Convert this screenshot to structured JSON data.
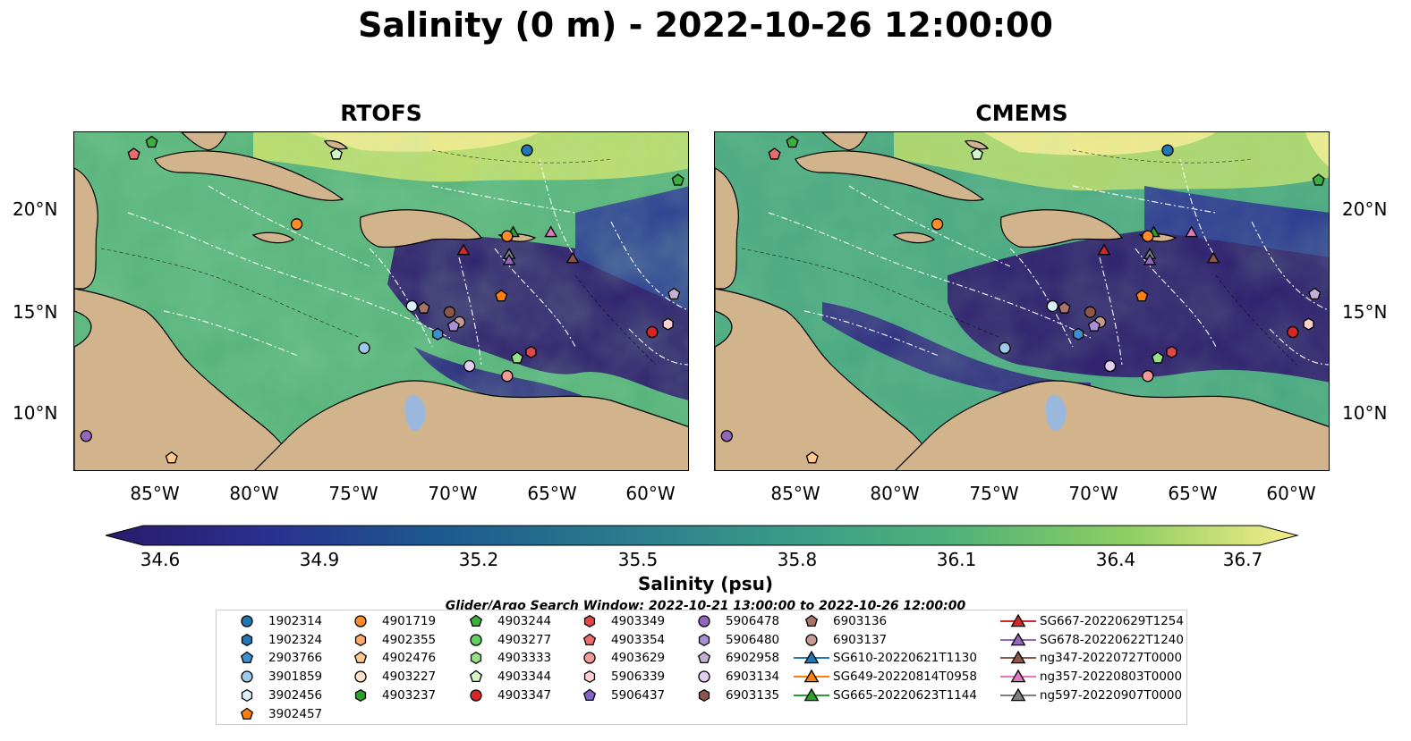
{
  "title": "Salinity (0 m) - 2022-10-26 12:00:00",
  "panels": [
    {
      "title": "RTOFS"
    },
    {
      "title": "CMEMS"
    }
  ],
  "lat_labels": [
    "20°N",
    "15°N",
    "10°N"
  ],
  "lon_labels": [
    "85°W",
    "80°W",
    "75°W",
    "70°W",
    "65°W",
    "60°W"
  ],
  "colorbar": {
    "label": "Salinity (psu)",
    "ticks": [
      "34.6",
      "34.9",
      "35.2",
      "35.5",
      "35.8",
      "36.1",
      "36.4",
      "36.7"
    ],
    "cmap": "haline",
    "extend": "both"
  },
  "search_window": "Glider/Argo Search Window: 2022-10-21 13:00:00 to 2022-10-26 12:00:00",
  "legend": [
    {
      "label": "1902314",
      "shape": "circle",
      "color": "#1f77b4"
    },
    {
      "label": "1902324",
      "shape": "hexagon",
      "color": "#1f77b4"
    },
    {
      "label": "2903766",
      "shape": "pentagon",
      "color": "#3d8fd0"
    },
    {
      "label": "3901859",
      "shape": "circle",
      "color": "#9ecae9"
    },
    {
      "label": "3902456",
      "shape": "hexagon",
      "color": "#dbeefb"
    },
    {
      "label": "3902457",
      "shape": "pentagon",
      "color": "#ff7f0e"
    },
    {
      "label": "4901719",
      "shape": "circle",
      "color": "#ff8c2a"
    },
    {
      "label": "4902355",
      "shape": "hexagon",
      "color": "#ffab6b"
    },
    {
      "label": "4902476",
      "shape": "pentagon",
      "color": "#ffc98f"
    },
    {
      "label": "4903227",
      "shape": "circle",
      "color": "#fde0c5"
    },
    {
      "label": "4903237",
      "shape": "hexagon",
      "color": "#2ca02c"
    },
    {
      "label": "4903244",
      "shape": "pentagon",
      "color": "#3cb03c"
    },
    {
      "label": "4903277",
      "shape": "circle",
      "color": "#5ed15e"
    },
    {
      "label": "4903333",
      "shape": "hexagon",
      "color": "#98df8a"
    },
    {
      "label": "4903344",
      "shape": "pentagon",
      "color": "#d4f5c8"
    },
    {
      "label": "4903347",
      "shape": "circle",
      "color": "#d62728"
    },
    {
      "label": "4903349",
      "shape": "hexagon",
      "color": "#e0474a"
    },
    {
      "label": "4903354",
      "shape": "pentagon",
      "color": "#ec6c6e"
    },
    {
      "label": "4903629",
      "shape": "circle",
      "color": "#f29a98"
    },
    {
      "label": "5906339",
      "shape": "hexagon",
      "color": "#fbd0cf"
    },
    {
      "label": "5906437",
      "shape": "pentagon",
      "color": "#8463c4"
    },
    {
      "label": "5906478",
      "shape": "circle",
      "color": "#9467bd"
    },
    {
      "label": "5906480",
      "shape": "hexagon",
      "color": "#ad8fd6"
    },
    {
      "label": "6902958",
      "shape": "pentagon",
      "color": "#c5b0d5"
    },
    {
      "label": "6903134",
      "shape": "circle",
      "color": "#e3cdf1"
    },
    {
      "label": "6903135",
      "shape": "hexagon",
      "color": "#8c564b"
    },
    {
      "label": "6903136",
      "shape": "pentagon",
      "color": "#a8746a"
    },
    {
      "label": "6903137",
      "shape": "circle",
      "color": "#c49c94"
    },
    {
      "label": "SG610-20220621T1130",
      "shape": "triangle-line",
      "color": "#1f77b4"
    },
    {
      "label": "SG649-20220814T0958",
      "shape": "triangle-line",
      "color": "#ff7f0e"
    },
    {
      "label": "SG665-20220623T1144",
      "shape": "triangle-line",
      "color": "#2ca02c"
    },
    {
      "label": "SG667-20220629T1254",
      "shape": "triangle-line",
      "color": "#d62728"
    },
    {
      "label": "SG678-20220622T1240",
      "shape": "triangle-line",
      "color": "#9467bd"
    },
    {
      "label": "ng347-20220727T0000",
      "shape": "triangle-line",
      "color": "#8c564b"
    },
    {
      "label": "ng357-20220803T0000",
      "shape": "triangle-line",
      "color": "#e377c2"
    },
    {
      "label": "ng597-20220907T0000",
      "shape": "triangle-line",
      "color": "#7f7f7f"
    }
  ],
  "map_extent": {
    "lon": [
      -89,
      -58
    ],
    "lat": [
      7,
      24
    ]
  },
  "markers": [
    {
      "lon": -66.2,
      "lat": 23.1,
      "shape": "circle",
      "color": "#1f77b4"
    },
    {
      "lon": -85.1,
      "lat": 23.5,
      "shape": "pentagon",
      "color": "#3cb03c"
    },
    {
      "lon": -86.0,
      "lat": 22.9,
      "shape": "pentagon",
      "color": "#ec6c6e"
    },
    {
      "lon": -75.8,
      "lat": 22.9,
      "shape": "pentagon",
      "color": "#d4f5c8"
    },
    {
      "lon": -58.6,
      "lat": 21.6,
      "shape": "pentagon",
      "color": "#3cb03c"
    },
    {
      "lon": -77.8,
      "lat": 19.4,
      "shape": "circle",
      "color": "#ff8c2a"
    },
    {
      "lon": -66.9,
      "lat": 19.0,
      "shape": "triangle",
      "color": "#2ca02c"
    },
    {
      "lon": -65.0,
      "lat": 19.0,
      "shape": "triangle",
      "color": "#e377c2"
    },
    {
      "lon": -67.2,
      "lat": 18.8,
      "shape": "circle",
      "color": "#ff8c2a"
    },
    {
      "lon": -69.4,
      "lat": 18.1,
      "shape": "triangle",
      "color": "#d62728"
    },
    {
      "lon": -67.1,
      "lat": 17.9,
      "shape": "triangle",
      "color": "#7f7f7f"
    },
    {
      "lon": -67.1,
      "lat": 17.6,
      "shape": "triangle",
      "color": "#9467bd"
    },
    {
      "lon": -63.9,
      "lat": 17.7,
      "shape": "triangle",
      "color": "#8c564b"
    },
    {
      "lon": -67.5,
      "lat": 15.8,
      "shape": "pentagon",
      "color": "#ff7f0e"
    },
    {
      "lon": -58.8,
      "lat": 15.9,
      "shape": "pentagon",
      "color": "#c5b0d5"
    },
    {
      "lon": -72.0,
      "lat": 15.3,
      "shape": "circle",
      "color": "#dbeefb"
    },
    {
      "lon": -71.4,
      "lat": 15.2,
      "shape": "pentagon",
      "color": "#a8746a"
    },
    {
      "lon": -70.1,
      "lat": 15.0,
      "shape": "circle",
      "color": "#8c564b"
    },
    {
      "lon": -69.6,
      "lat": 14.5,
      "shape": "circle",
      "color": "#c49c94"
    },
    {
      "lon": -69.9,
      "lat": 14.3,
      "shape": "pentagon",
      "color": "#ad8fd6"
    },
    {
      "lon": -70.7,
      "lat": 13.9,
      "shape": "hexagon",
      "color": "#3d8fd0"
    },
    {
      "lon": -59.1,
      "lat": 14.4,
      "shape": "hexagon",
      "color": "#fbd0cf"
    },
    {
      "lon": -59.9,
      "lat": 14.0,
      "shape": "circle",
      "color": "#d62728"
    },
    {
      "lon": -74.4,
      "lat": 13.2,
      "shape": "circle",
      "color": "#9ecae9"
    },
    {
      "lon": -66.0,
      "lat": 13.0,
      "shape": "hexagon",
      "color": "#e0474a"
    },
    {
      "lon": -66.7,
      "lat": 12.7,
      "shape": "pentagon",
      "color": "#98df8a"
    },
    {
      "lon": -69.1,
      "lat": 12.3,
      "shape": "circle",
      "color": "#e3cdf1"
    },
    {
      "lon": -67.2,
      "lat": 11.8,
      "shape": "circle",
      "color": "#f29a98"
    },
    {
      "lon": -88.4,
      "lat": 8.8,
      "shape": "circle",
      "color": "#9467bd"
    },
    {
      "lon": -84.1,
      "lat": 7.7,
      "shape": "pentagon",
      "color": "#ffc98f"
    }
  ]
}
